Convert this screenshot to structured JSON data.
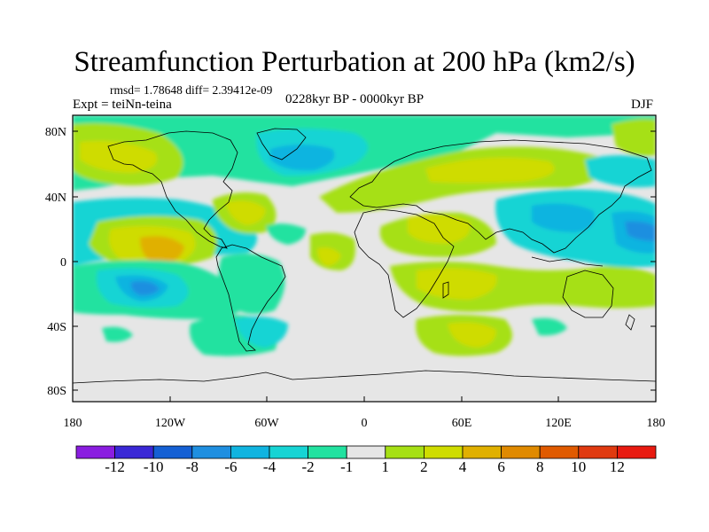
{
  "title": "Streamfunction Perturbation at 200 hPa (km2/s)",
  "stats": "rmsd= 1.78648 diff= 2.39412e-09",
  "experiment": "Expt = teiNn-teina",
  "period": "0228kyr BP - 0000kyr BP",
  "season": "DJF",
  "lat_labels": [
    "80N",
    "40N",
    "0",
    "40S",
    "80S"
  ],
  "lon_labels": [
    "180",
    "120W",
    "60W",
    "0",
    "60E",
    "120E",
    "180"
  ],
  "colorbar": {
    "labels": [
      "-12",
      "-10",
      "-8",
      "-6",
      "-4",
      "-2",
      "-1",
      "1",
      "2",
      "4",
      "6",
      "8",
      "10",
      "12"
    ],
    "colors": [
      "#8a1de0",
      "#3a28d6",
      "#1560d4",
      "#1f8fe0",
      "#10b4e0",
      "#17d4d4",
      "#22e2a0",
      "#e6e6e6",
      "#a6e015",
      "#cfdc00",
      "#e0b000",
      "#e08a00",
      "#e05a00",
      "#e03a10",
      "#e81a10"
    ]
  },
  "map_colors": {
    "land_line": "#000000",
    "background": "#e6e6e6"
  }
}
